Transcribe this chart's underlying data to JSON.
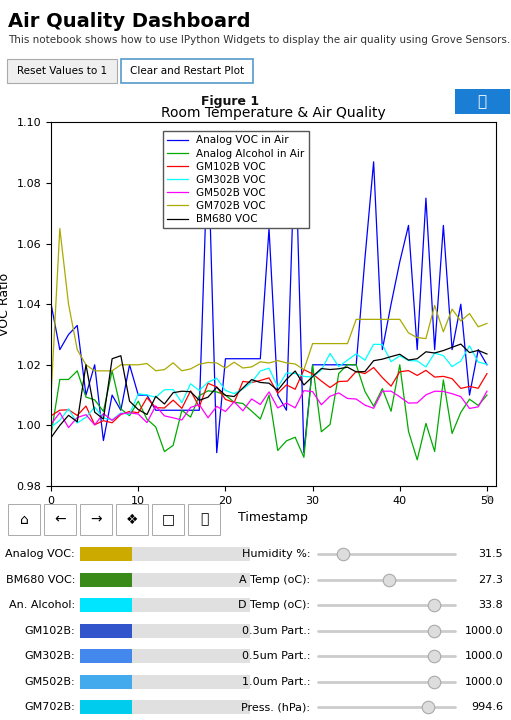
{
  "title": "Air Quality Dashboard",
  "subtitle": "This notebook shows how to use IPython Widgets to display the air quality using Grove Sensors.",
  "btn1": "Reset Values to 1",
  "btn2": "Clear and Restart Plot",
  "figure_label": "Figure 1",
  "plot_title": "Room Temperature & Air Quality",
  "xlabel": "Timestamp",
  "ylabel": "VOC Ratio",
  "ylim": [
    0.98,
    1.1
  ],
  "xlim": [
    0,
    51
  ],
  "xticks": [
    0,
    10,
    20,
    30,
    40,
    50
  ],
  "yticks": [
    0.98,
    1.0,
    1.02,
    1.04,
    1.06,
    1.08,
    1.1
  ],
  "legend_labels": [
    "Analog VOC in Air",
    "Analog Alcohol in Air",
    "GM102B VOC",
    "GM302B VOC",
    "GM502B VOC",
    "GM702B VOC",
    "BM680 VOC"
  ],
  "line_colors": [
    "blue",
    "#00aa00",
    "red",
    "cyan",
    "magenta",
    "#aaaa00",
    "black"
  ],
  "bg_color": "#ffffff",
  "fig_bar_color": "#b8b8b8",
  "power_btn_color": "#1a7fd4",
  "left_labels": [
    "Analog VOC:",
    "BM680 VOC:",
    "An. Alcohol:",
    "GM102B:",
    "GM302B:",
    "GM502B:",
    "GM702B:"
  ],
  "left_bar_colors": [
    "#ccaa00",
    "#3a8a1a",
    "#00e5ff",
    "#3355cc",
    "#4488ee",
    "#44aaee",
    "#00ccee"
  ],
  "right_labels": [
    "Humidity %:",
    "A Temp (oC):",
    "D Temp (oC):",
    "0.3um Part.:",
    "0.5um Part.:",
    "1.0um Part.:",
    "Press. (hPa):"
  ],
  "right_values": [
    "31.5",
    "27.3",
    "33.8",
    "1000.0",
    "1000.0",
    "1000.0",
    "994.6"
  ],
  "slider_positions": [
    0.18,
    0.52,
    0.85,
    0.85,
    0.85,
    0.85,
    0.8
  ],
  "seed": 42
}
